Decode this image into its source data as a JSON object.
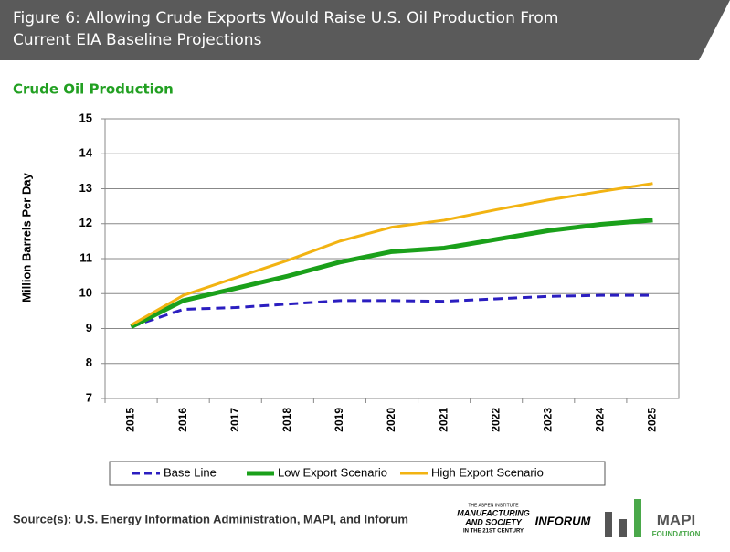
{
  "header": {
    "title_lines": [
      "Figure 6:  Allowing Crude Exports Would Raise U.S. Oil Production From",
      "Current EIA Baseline Projections"
    ]
  },
  "chart_data": {
    "type": "line",
    "title": "Crude Oil Production",
    "y_label": "Million Barrels Per Day",
    "categories": [
      "2015",
      "2016",
      "2017",
      "2018",
      "2019",
      "2020",
      "2021",
      "2022",
      "2023",
      "2024",
      "2025"
    ],
    "series": [
      {
        "name": "Base Line",
        "color": "#2b1ec0",
        "dash": true,
        "values": [
          9.05,
          9.55,
          9.6,
          9.7,
          9.8,
          9.8,
          9.78,
          9.85,
          9.92,
          9.95,
          9.95
        ]
      },
      {
        "name": "Low Export Scenario",
        "color": "#1aa01a",
        "dash": false,
        "values": [
          9.05,
          9.8,
          10.15,
          10.5,
          10.9,
          11.2,
          11.3,
          11.55,
          11.8,
          11.98,
          12.1
        ]
      },
      {
        "name": "High Export Scenario",
        "color": "#f2b312",
        "dash": false,
        "values": [
          9.1,
          9.95,
          10.45,
          10.95,
          11.5,
          11.9,
          12.1,
          12.4,
          12.68,
          12.92,
          13.15
        ]
      }
    ],
    "ylim": [
      7,
      15
    ],
    "yticks": [
      7,
      8,
      9,
      10,
      11,
      12,
      13,
      14,
      15
    ],
    "grid": true
  },
  "footer": {
    "source": "Source(s): U.S. Energy Information Administration, MAPI, and Inforum",
    "logos": [
      "THE ASPEN INSTITUTE",
      "MANUFACTURING",
      "AND SOCIETY",
      "IN THE 21ST CENTURY",
      "INFORUM",
      "MAPI",
      "FOUNDATION"
    ]
  }
}
